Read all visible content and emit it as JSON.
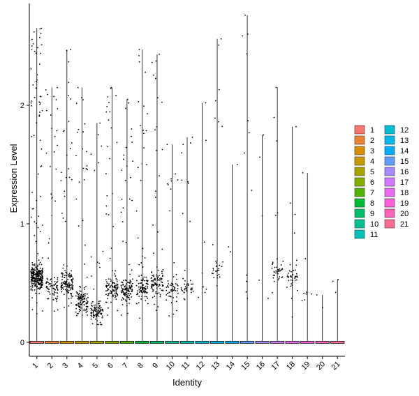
{
  "chart_data": {
    "type": "violin",
    "xlabel": "Identity",
    "ylabel": "Expression Level",
    "ylim": [
      -0.12,
      2.9
    ],
    "yticks": [
      0,
      1,
      2
    ],
    "grid": false,
    "legend_position": "right",
    "categories": [
      "1",
      "2",
      "3",
      "4",
      "5",
      "6",
      "7",
      "8",
      "9",
      "10",
      "11",
      "12",
      "13",
      "14",
      "15",
      "16",
      "17",
      "18",
      "19",
      "20",
      "21"
    ],
    "colors": [
      "#F8766D",
      "#EB8335",
      "#DA8F00",
      "#C49A00",
      "#A9A400",
      "#86AC00",
      "#53B400",
      "#00BA38",
      "#00BE6C",
      "#00C094",
      "#00C0B5",
      "#00BDD2",
      "#00B6EB",
      "#00ACFC",
      "#619CFF",
      "#A58AFF",
      "#CF78FF",
      "#EC69EF",
      "#FB61D7",
      "#FF63B6",
      "#FF6C91"
    ],
    "max_values": [
      2.65,
      2.15,
      2.47,
      2.15,
      1.85,
      2.15,
      2.05,
      2.47,
      2.43,
      1.67,
      1.73,
      2.02,
      2.56,
      1.5,
      2.76,
      1.75,
      2.15,
      1.82,
      1.43,
      0.4,
      0.53
    ],
    "cluster_centers": [
      0.55,
      0.45,
      0.5,
      0.35,
      0.25,
      0.45,
      0.45,
      0.45,
      0.5,
      0.45,
      0.45,
      0.5,
      0.6,
      0.8,
      0.5,
      0.5,
      0.6,
      0.55,
      0.4,
      0.35,
      0.4
    ],
    "cell_counts": [
      320,
      90,
      140,
      130,
      100,
      120,
      130,
      100,
      100,
      60,
      40,
      8,
      30,
      3,
      12,
      5,
      40,
      40,
      8,
      2,
      3
    ]
  },
  "legend": {
    "col1": [
      "1",
      "2",
      "3",
      "4",
      "5",
      "6",
      "7",
      "8",
      "9",
      "10",
      "11"
    ],
    "col2": [
      "12",
      "13",
      "14",
      "15",
      "16",
      "17",
      "18",
      "19",
      "20",
      "21"
    ]
  }
}
